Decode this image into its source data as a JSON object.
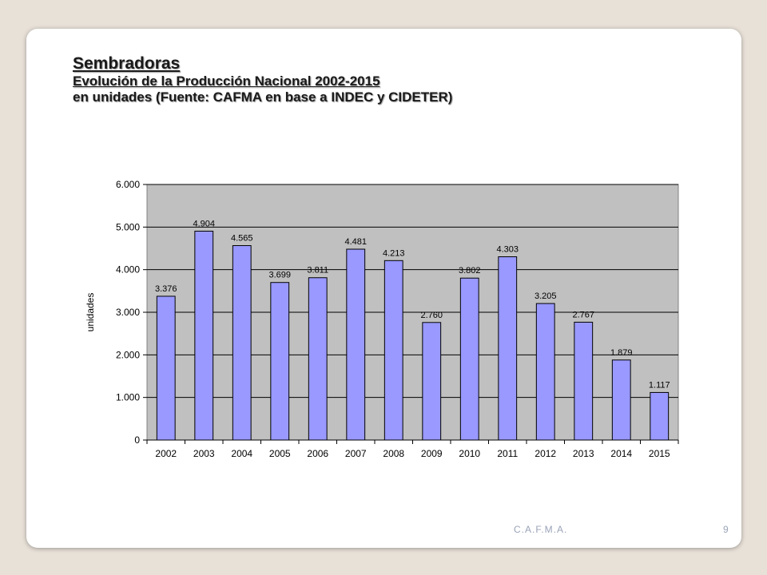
{
  "slide": {
    "title": "Sembradoras",
    "subtitle": "Evolución de la Producción Nacional 2002-2015",
    "subtitle2": "en unidades (Fuente: CAFMA en base a INDEC y CIDETER)",
    "footer": "C.A.F.M.A.",
    "page_number": "9"
  },
  "colors": {
    "bar_fill": "#9999ff",
    "plot_bg": "#c0c0c0",
    "background": "#e8e1d8"
  },
  "chart_data": {
    "type": "bar",
    "title": "",
    "xlabel": "",
    "ylabel": "unidades",
    "ylim": [
      0,
      6000
    ],
    "yticks": [
      "0",
      "1.000",
      "2.000",
      "3.000",
      "4.000",
      "5.000",
      "6.000"
    ],
    "grid": true,
    "categories": [
      "2002",
      "2003",
      "2004",
      "2005",
      "2006",
      "2007",
      "2008",
      "2009",
      "2010",
      "2011",
      "2012",
      "2013",
      "2014",
      "2015"
    ],
    "values": [
      3376,
      4904,
      4565,
      3699,
      3811,
      4481,
      4213,
      2760,
      3802,
      4303,
      3205,
      2767,
      1879,
      1117
    ],
    "labels": [
      "3.376",
      "4.904",
      "4.565",
      "3.699",
      "3.811",
      "4.481",
      "4.213",
      "2.760",
      "3.802",
      "4.303",
      "3.205",
      "2.767",
      "1.879",
      "1.117"
    ]
  }
}
